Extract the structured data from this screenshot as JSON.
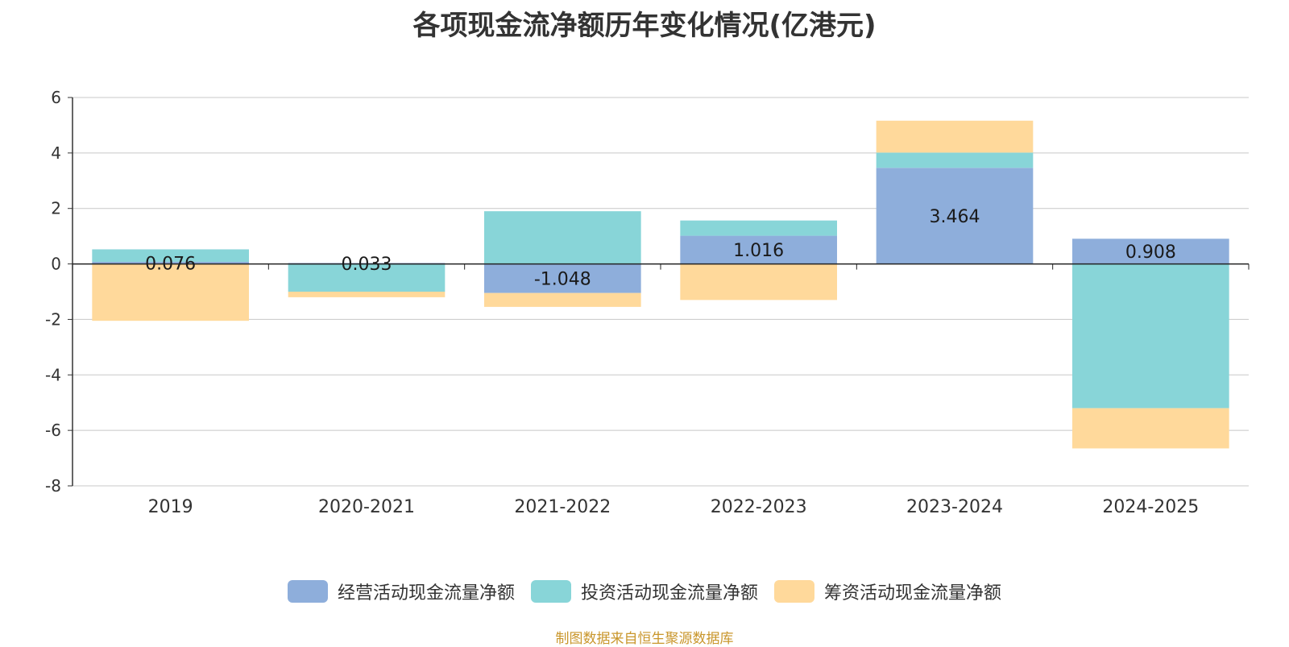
{
  "chart_data": {
    "type": "bar",
    "stacked": true,
    "title": "各项现金流净额历年变化情况(亿港元)",
    "categories": [
      "2019",
      "2020-2021",
      "2021-2022",
      "2022-2023",
      "2023-2024",
      "2024-2025"
    ],
    "series": [
      {
        "name": "经营活动现金流量净额",
        "color": "#8eaedb",
        "values": [
          0.076,
          0.033,
          -1.048,
          1.016,
          3.464,
          0.908
        ],
        "labels": [
          "0.076",
          "0.033",
          "-1.048",
          "1.016",
          "3.464",
          "0.908"
        ]
      },
      {
        "name": "投资活动现金流量净额",
        "color": "#88d5d8",
        "values": [
          0.45,
          -1.0,
          1.9,
          0.55,
          0.55,
          -5.2
        ]
      },
      {
        "name": "筹资活动现金流量净额",
        "color": "#ffd99b",
        "values": [
          -2.05,
          -0.2,
          -0.5,
          -1.3,
          1.15,
          -1.45
        ]
      }
    ],
    "ylim": [
      -8,
      6
    ],
    "yticks": [
      "6",
      "4",
      "2",
      "0",
      "-2",
      "-4",
      "-6",
      "-8"
    ],
    "ytick_values": [
      6,
      4,
      2,
      0,
      -2,
      -4,
      -6,
      -8
    ],
    "grid": true,
    "legend_position": "bottom"
  },
  "source": "制图数据来自恒生聚源数据库"
}
